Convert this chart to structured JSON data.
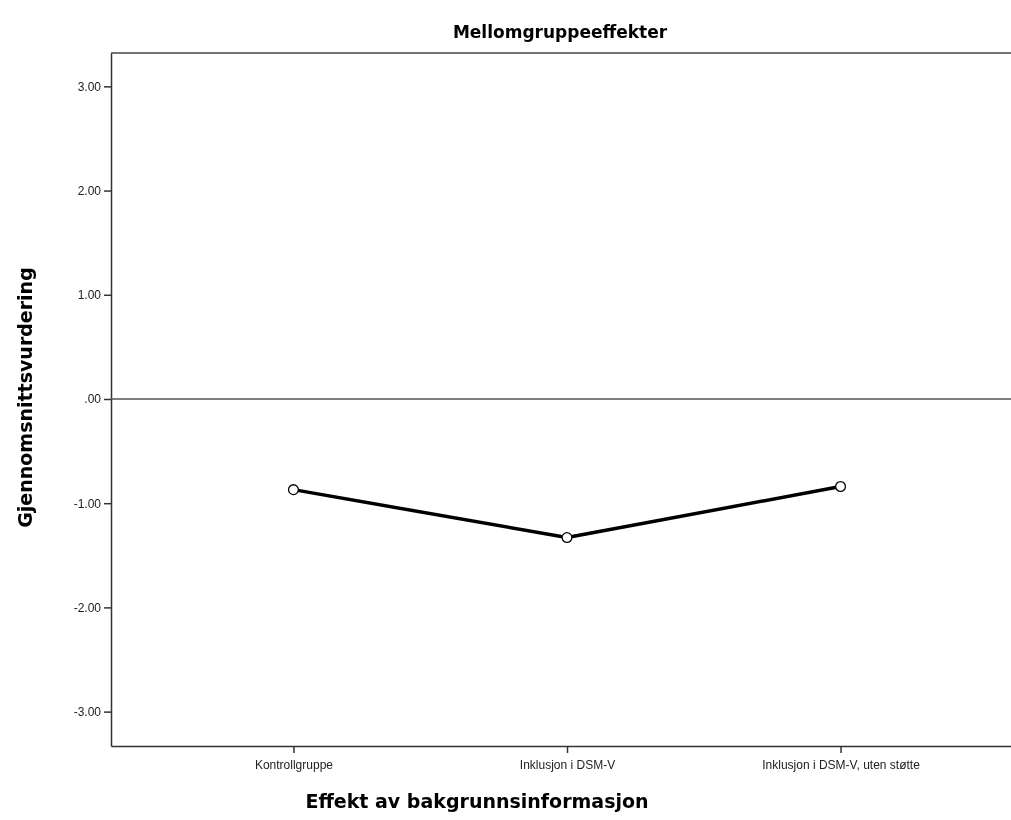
{
  "chart_data": {
    "type": "line",
    "title": "Mellomgruppeeffekter",
    "xlabel": "Effekt av bakgrunnsinformasjon",
    "ylabel": "Gjennomsnittsvurdering",
    "categories": [
      "Kontrollgruppe",
      "Inklusjon i DSM-V",
      "Inklusjon i DSM-V, uten støtte"
    ],
    "series": [
      {
        "color": "#000000",
        "values": [
          -0.87,
          -1.33,
          -0.84
        ]
      }
    ],
    "ylim": [
      -3.33,
      3.32
    ],
    "yticks": [
      {
        "value": -3,
        "label": "-3.00"
      },
      {
        "value": -2,
        "label": "-2.00"
      },
      {
        "value": -1,
        "label": "-1.00"
      },
      {
        "value": 0,
        "label": ".00"
      },
      {
        "value": 1,
        "label": "1.00"
      },
      {
        "value": 2,
        "label": "2.00"
      },
      {
        "value": 3,
        "label": "3.00"
      }
    ],
    "ref_lines": [
      {
        "axis": "y",
        "value": 0,
        "color": "#555555"
      }
    ],
    "marker": "circle",
    "line_style": "solid",
    "grid": false
  }
}
